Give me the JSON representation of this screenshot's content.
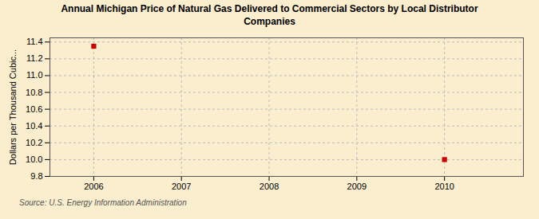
{
  "chart_data": {
    "type": "scatter",
    "title": "Annual Michigan Price of Natural Gas Delivered to Commercial Sectors by Local Distributor\nCompanies",
    "ylabel": "Dollars per Thousand Cubic...",
    "source": "Source: U.S. Energy Information Administration",
    "x": [
      2006,
      2010
    ],
    "values": [
      11.35,
      10.0
    ],
    "color": "#cc0000",
    "marker": "square",
    "xlim": [
      2005.5,
      2010.9
    ],
    "xticks": [
      2006,
      2007,
      2008,
      2009,
      2010
    ],
    "ylim": [
      9.8,
      11.45
    ],
    "yticks": [
      9.8,
      {
        "value": 10.0,
        "label": "10.0"
      },
      10.2,
      10.4,
      10.6,
      10.8,
      {
        "value": 11.0,
        "label": "11.0"
      },
      11.2,
      11.4
    ],
    "grid": true
  }
}
